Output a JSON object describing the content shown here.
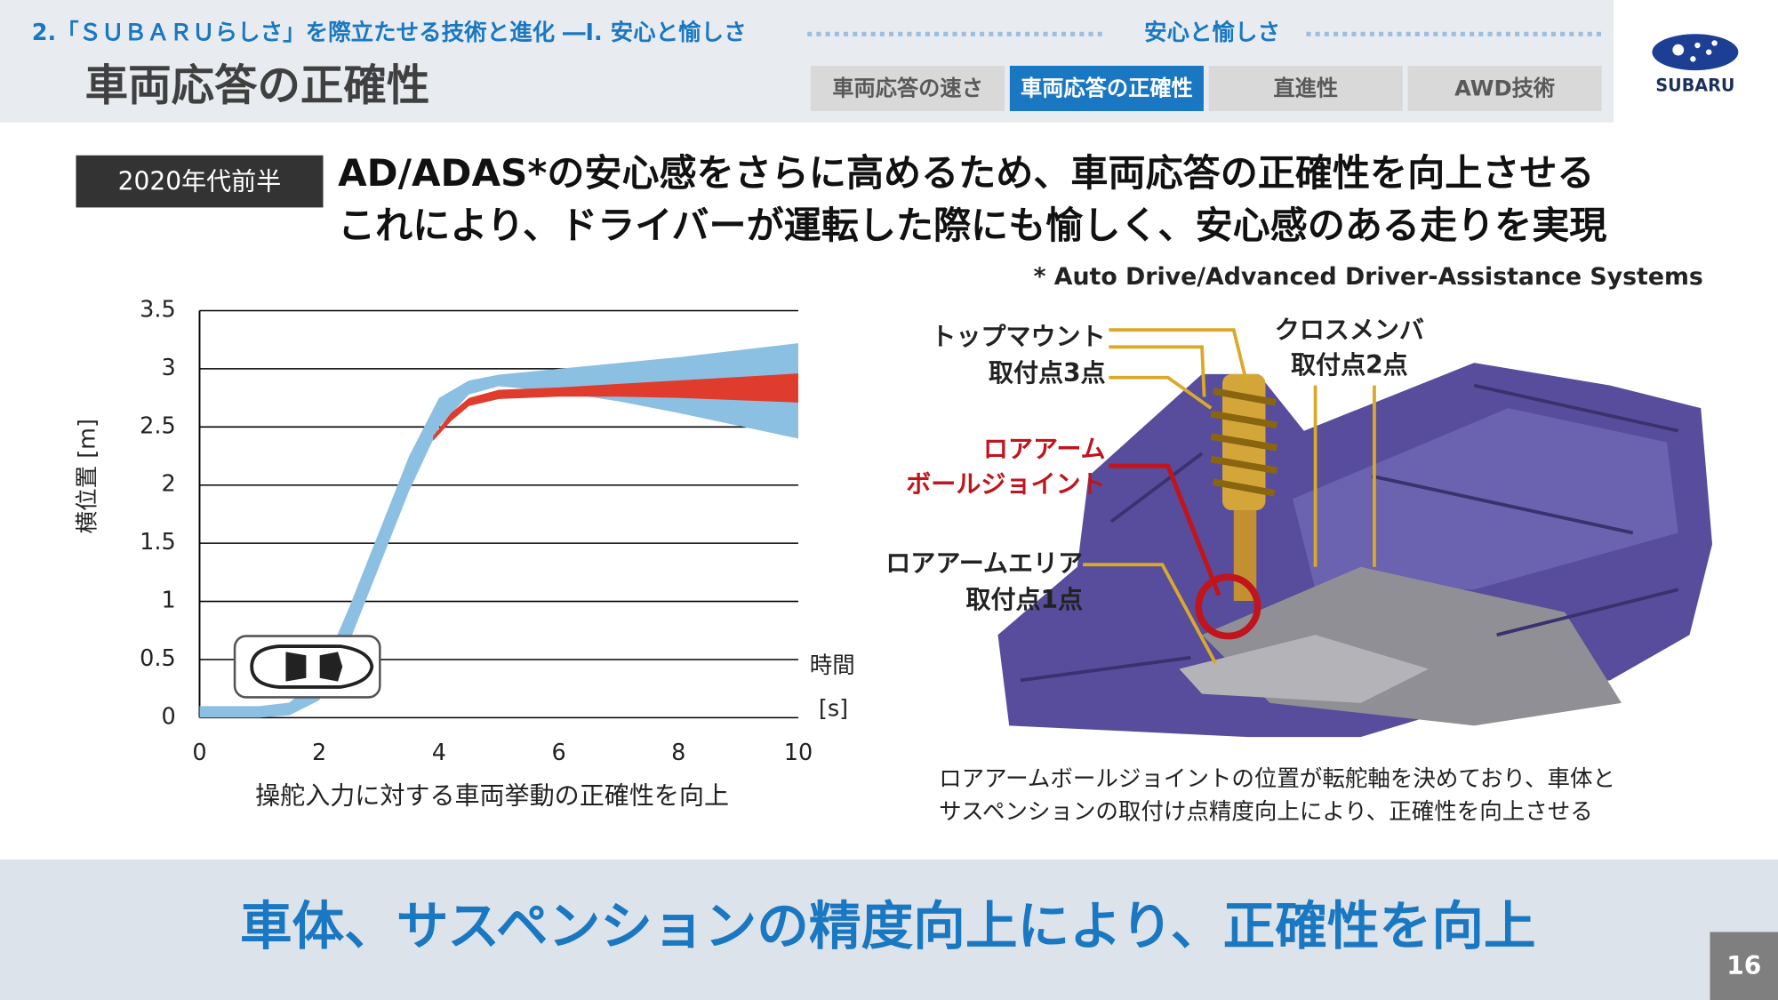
{
  "header": {
    "section": "2.「ＳＵＢＡＲＵらしさ」を際立たせる技術と進化 ―Ⅰ. 安心と愉しさ",
    "section_tag": "安心と愉しさ",
    "title": "車両応答の正確性",
    "tabs": [
      "車両応答の速さ",
      "車両応答の正確性",
      "直進性",
      "AWD技術"
    ],
    "active_tab": 1,
    "logo": "SUBARU"
  },
  "badge": "2020年代前半",
  "headline": [
    "AD/ADAS*の安心感をさらに高めるため、車両応答の正確性を向上させる",
    "これにより、ドライバーが運転した際にも愉しく、安心感のある走りを実現"
  ],
  "footnote": "* Auto Drive/Advanced Driver-Assistance Systems",
  "chart_data": {
    "type": "band",
    "y_label": "横位置 [m]",
    "x_unit_label": "時間",
    "x_unit": "[s]",
    "caption": "操舵入力に対する車両挙動の正確性を向上",
    "xlim": [
      0,
      10
    ],
    "xticks": [
      0,
      2,
      4,
      6,
      8,
      10
    ],
    "ylim": [
      0,
      3.5
    ],
    "yticks": [
      0,
      0.5,
      1,
      1.5,
      2,
      2.5,
      3,
      3.5
    ],
    "grid": true,
    "series": [
      {
        "color": "#8cc0e2",
        "x": [
          0,
          1,
          1.5,
          2,
          2.5,
          3,
          3.5,
          4,
          4.5,
          5,
          6,
          7,
          8,
          9,
          10
        ],
        "lower": [
          0,
          0,
          0.02,
          0.15,
          0.65,
          1.3,
          1.95,
          2.5,
          2.78,
          2.85,
          2.8,
          2.72,
          2.62,
          2.51,
          2.4
        ],
        "upper": [
          0.1,
          0.1,
          0.13,
          0.35,
          0.95,
          1.6,
          2.25,
          2.75,
          2.9,
          2.95,
          3.0,
          3.05,
          3.1,
          3.16,
          3.22
        ]
      },
      {
        "color": "#e03c2e",
        "x": [
          3.9,
          4.2,
          4.5,
          5,
          6,
          7,
          8,
          9,
          10
        ],
        "lower": [
          2.38,
          2.55,
          2.68,
          2.74,
          2.76,
          2.76,
          2.75,
          2.73,
          2.71
        ],
        "upper": [
          2.42,
          2.62,
          2.75,
          2.82,
          2.84,
          2.87,
          2.9,
          2.93,
          2.96
        ]
      }
    ]
  },
  "figure": {
    "callouts": [
      "トップマウント",
      "取付点3点",
      "ロアアーム",
      "ボールジョイント",
      "ロアアームエリア",
      "取付点1点",
      "クロスメンバ",
      "取付点2点"
    ],
    "caption": [
      "ロアアームボールジョイントの位置が転舵軸を決めており、車体と",
      "サスペンションの取付け点精度向上により、正確性を向上させる"
    ]
  },
  "banner": "車体、サスペンションの精度向上により、正確性を向上",
  "page_number": "16"
}
